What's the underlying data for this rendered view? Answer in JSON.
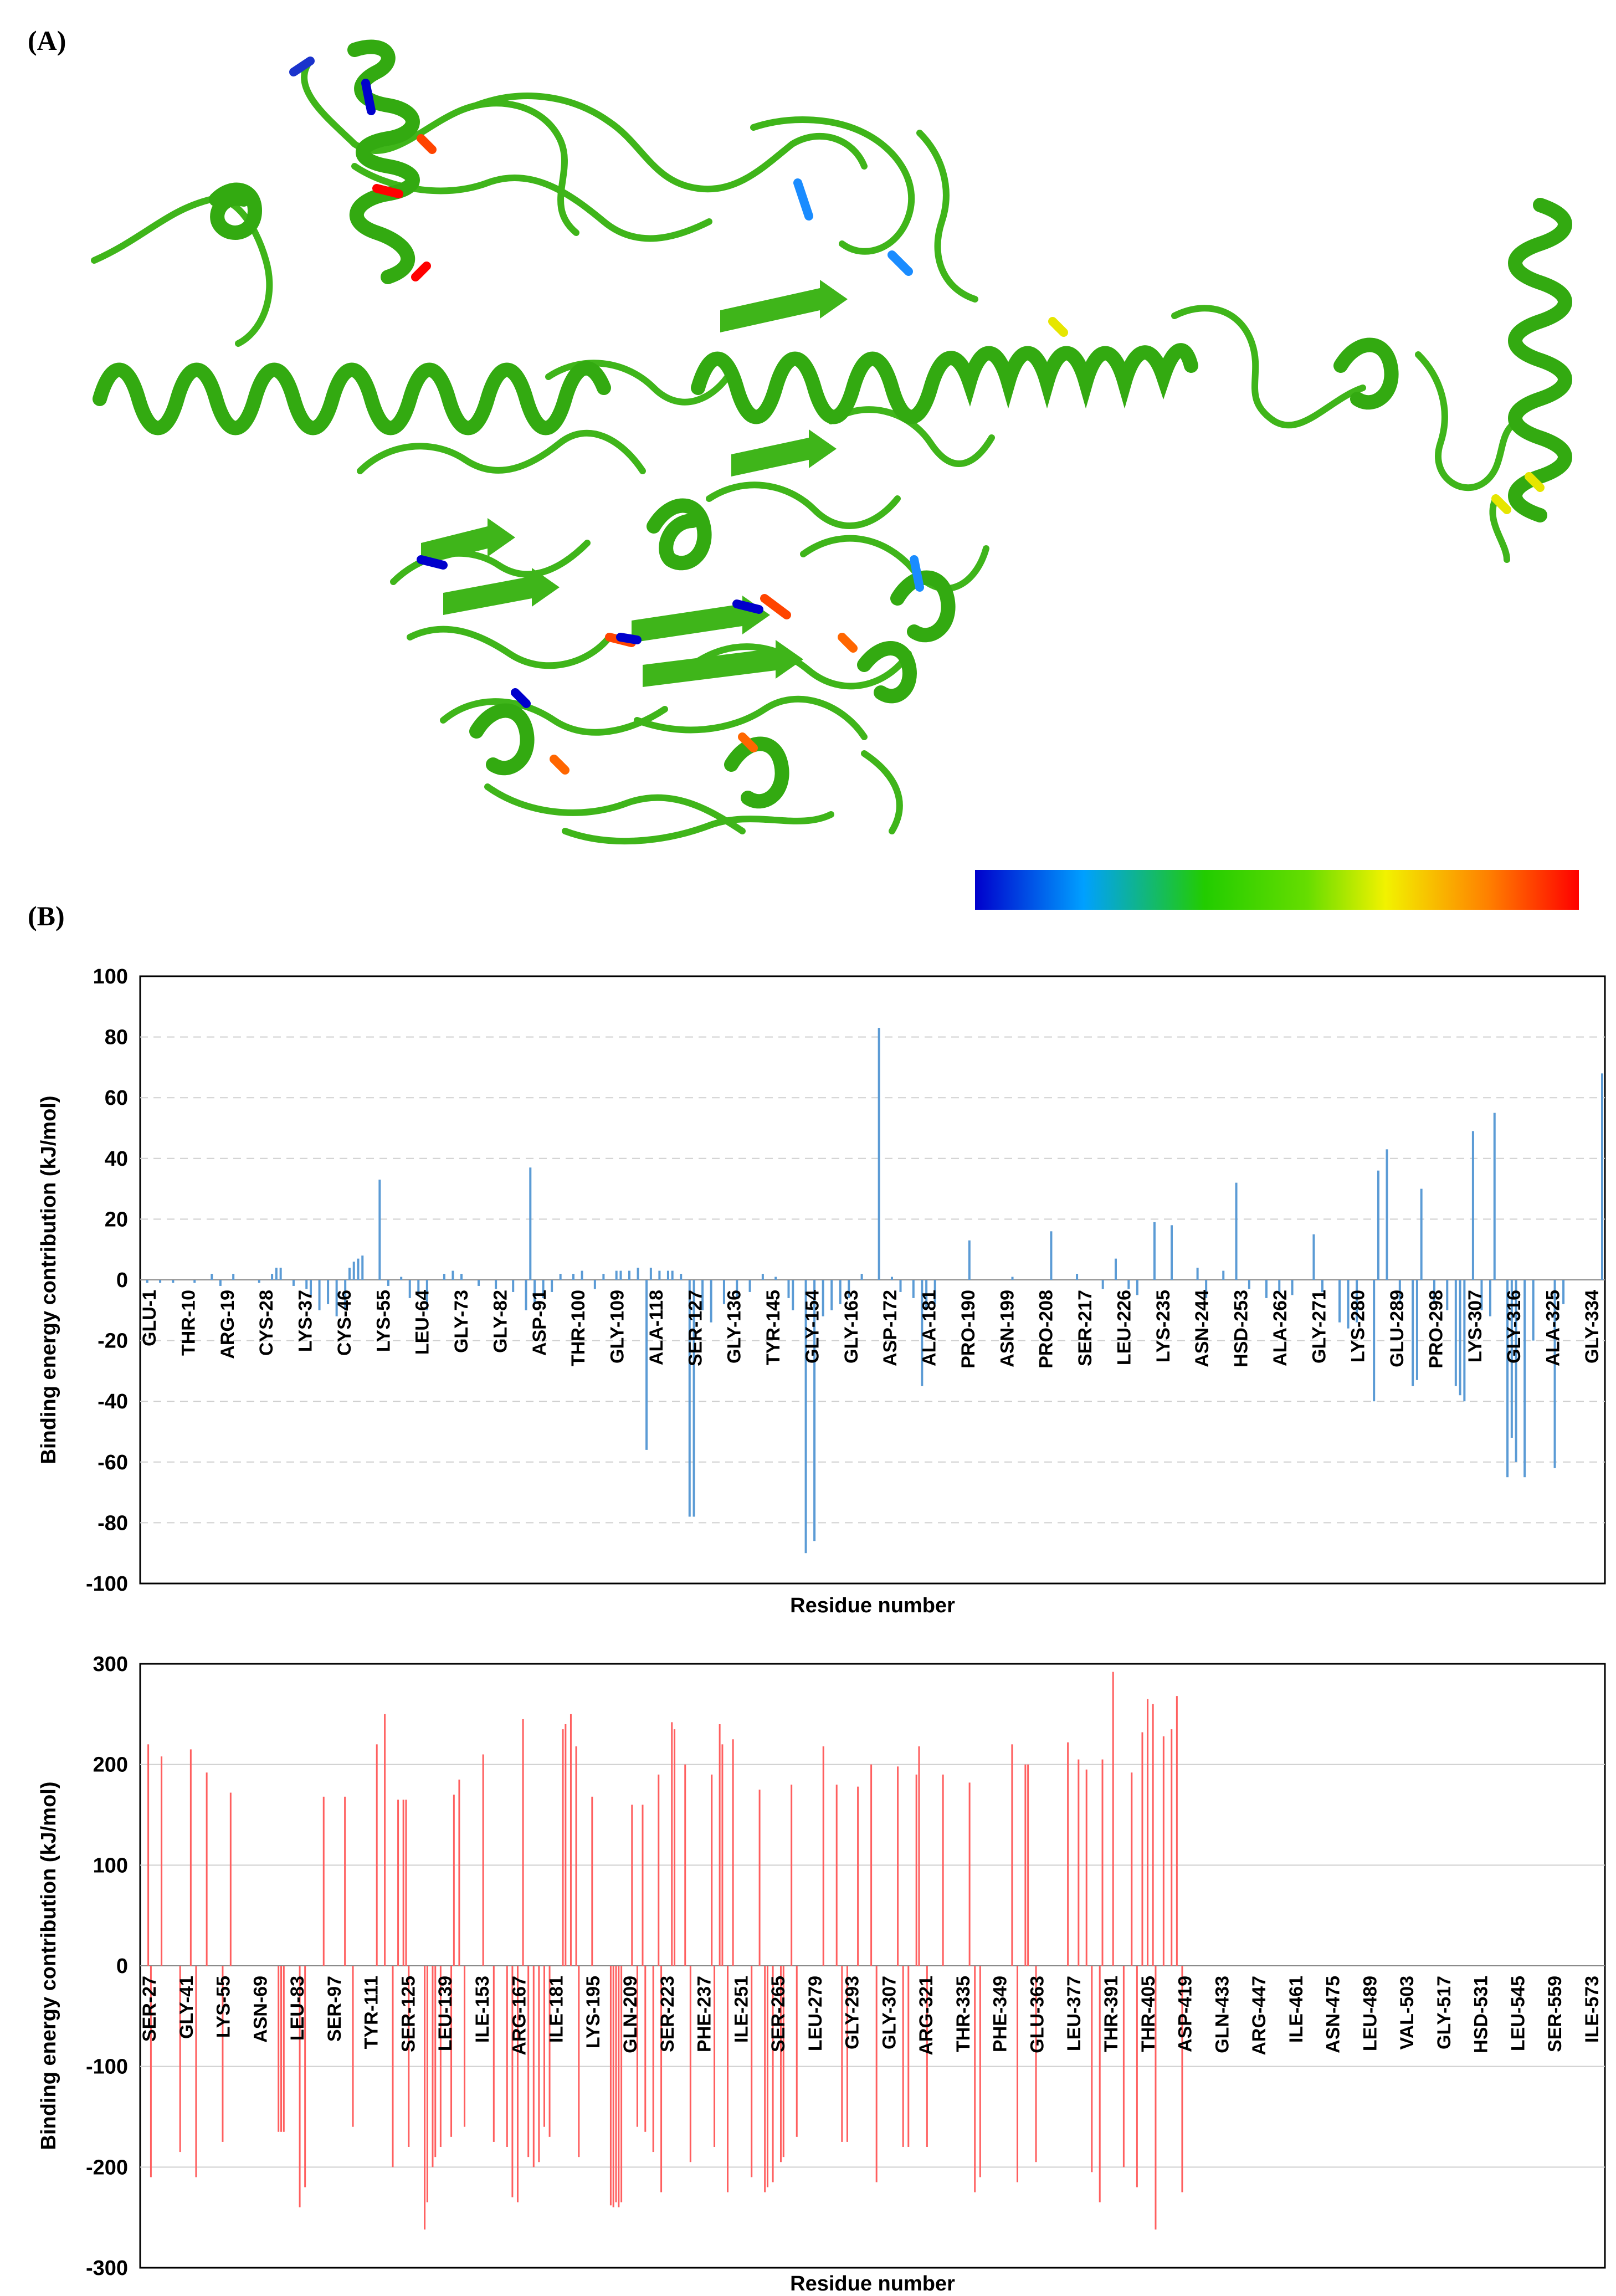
{
  "figure": {
    "panel_a_label": "(A)",
    "panel_b_label": "(B)",
    "panel_a_image": "protein-cartoon-ribbon-structure",
    "colorbar_colors": [
      "#0000cc",
      "#00a0ff",
      "#22cc00",
      "#f2f200",
      "#ff8000",
      "#ff0000"
    ]
  },
  "chart_data": [
    {
      "type": "bar",
      "title": "",
      "xlabel": "Residue number",
      "ylabel": "Binding energy contribution (kJ/mol)",
      "ylim": [
        -100,
        100
      ],
      "yticks": [
        100,
        80,
        60,
        40,
        20,
        0,
        -20,
        -40,
        -60,
        -80,
        -100
      ],
      "grid": true,
      "color": "#5b9bd5",
      "residue_range": [
        1,
        340
      ],
      "tick_labels": [
        "GLU-1",
        "THR-10",
        "ARG-19",
        "CYS-28",
        "LYS-37",
        "CYS-46",
        "LYS-55",
        "LEU-64",
        "GLY-73",
        "GLY-82",
        "ASP-91",
        "THR-100",
        "GLY-109",
        "ALA-118",
        "SER-127",
        "GLY-136",
        "TYR-145",
        "GLY-154",
        "GLY-163",
        "ASP-172",
        "ALA-181",
        "PRO-190",
        "ASN-199",
        "PRO-208",
        "SER-217",
        "LEU-226",
        "LYS-235",
        "ASN-244",
        "HSD-253",
        "ALA-262",
        "GLY-271",
        "LYS-280",
        "GLU-289",
        "PRO-298",
        "LYS-307",
        "GLY-316",
        "ALA-325",
        "GLY-334"
      ],
      "bars": [
        {
          "residue": 2,
          "value": -1
        },
        {
          "residue": 5,
          "value": -1
        },
        {
          "residue": 8,
          "value": -1
        },
        {
          "residue": 13,
          "value": -1
        },
        {
          "residue": 17,
          "value": 2
        },
        {
          "residue": 19,
          "value": -2
        },
        {
          "residue": 22,
          "value": 2
        },
        {
          "residue": 28,
          "value": -1
        },
        {
          "residue": 31,
          "value": 2
        },
        {
          "residue": 32,
          "value": 4
        },
        {
          "residue": 33,
          "value": 4
        },
        {
          "residue": 36,
          "value": -2
        },
        {
          "residue": 39,
          "value": -3
        },
        {
          "residue": 40,
          "value": -5
        },
        {
          "residue": 42,
          "value": -10
        },
        {
          "residue": 44,
          "value": -8
        },
        {
          "residue": 46,
          "value": -12
        },
        {
          "residue": 48,
          "value": -10
        },
        {
          "residue": 49,
          "value": 4
        },
        {
          "residue": 50,
          "value": 6
        },
        {
          "residue": 51,
          "value": 7
        },
        {
          "residue": 52,
          "value": 8
        },
        {
          "residue": 56,
          "value": 33
        },
        {
          "residue": 58,
          "value": -2
        },
        {
          "residue": 61,
          "value": 1
        },
        {
          "residue": 63,
          "value": -6
        },
        {
          "residue": 65,
          "value": -5
        },
        {
          "residue": 67,
          "value": -10
        },
        {
          "residue": 71,
          "value": 2
        },
        {
          "residue": 73,
          "value": 3
        },
        {
          "residue": 75,
          "value": 2
        },
        {
          "residue": 79,
          "value": -2
        },
        {
          "residue": 83,
          "value": -3
        },
        {
          "residue": 87,
          "value": -4
        },
        {
          "residue": 90,
          "value": -10
        },
        {
          "residue": 91,
          "value": 37
        },
        {
          "residue": 92,
          "value": -8
        },
        {
          "residue": 94,
          "value": -6
        },
        {
          "residue": 96,
          "value": -4
        },
        {
          "residue": 98,
          "value": 2
        },
        {
          "residue": 101,
          "value": 2
        },
        {
          "residue": 103,
          "value": 3
        },
        {
          "residue": 106,
          "value": -3
        },
        {
          "residue": 108,
          "value": 2
        },
        {
          "residue": 111,
          "value": 3
        },
        {
          "residue": 112,
          "value": 3
        },
        {
          "residue": 114,
          "value": 3
        },
        {
          "residue": 116,
          "value": 4
        },
        {
          "residue": 118,
          "value": -56
        },
        {
          "residue": 119,
          "value": 4
        },
        {
          "residue": 121,
          "value": 3
        },
        {
          "residue": 123,
          "value": 3
        },
        {
          "residue": 124,
          "value": 3
        },
        {
          "residue": 126,
          "value": 2
        },
        {
          "residue": 128,
          "value": -78
        },
        {
          "residue": 129,
          "value": -78
        },
        {
          "residue": 131,
          "value": -10
        },
        {
          "residue": 133,
          "value": -14
        },
        {
          "residue": 136,
          "value": -8
        },
        {
          "residue": 139,
          "value": -6
        },
        {
          "residue": 142,
          "value": -4
        },
        {
          "residue": 145,
          "value": 2
        },
        {
          "residue": 148,
          "value": 1
        },
        {
          "residue": 151,
          "value": -6
        },
        {
          "residue": 152,
          "value": -10
        },
        {
          "residue": 155,
          "value": -90
        },
        {
          "residue": 157,
          "value": -86
        },
        {
          "residue": 159,
          "value": -12
        },
        {
          "residue": 161,
          "value": -10
        },
        {
          "residue": 163,
          "value": -8
        },
        {
          "residue": 165,
          "value": -6
        },
        {
          "residue": 168,
          "value": 2
        },
        {
          "residue": 172,
          "value": 83
        },
        {
          "residue": 175,
          "value": 1
        },
        {
          "residue": 177,
          "value": -4
        },
        {
          "residue": 180,
          "value": -6
        },
        {
          "residue": 182,
          "value": -35
        },
        {
          "residue": 183,
          "value": -10
        },
        {
          "residue": 185,
          "value": -8
        },
        {
          "residue": 193,
          "value": 13
        },
        {
          "residue": 203,
          "value": 1
        },
        {
          "residue": 212,
          "value": 16
        },
        {
          "residue": 218,
          "value": 2
        },
        {
          "residue": 224,
          "value": -3
        },
        {
          "residue": 227,
          "value": 7
        },
        {
          "residue": 230,
          "value": -3
        },
        {
          "residue": 232,
          "value": -5
        },
        {
          "residue": 236,
          "value": 19
        },
        {
          "residue": 240,
          "value": 18
        },
        {
          "residue": 246,
          "value": 4
        },
        {
          "residue": 248,
          "value": -6
        },
        {
          "residue": 252,
          "value": 3
        },
        {
          "residue": 255,
          "value": 32
        },
        {
          "residue": 258,
          "value": -3
        },
        {
          "residue": 262,
          "value": -6
        },
        {
          "residue": 265,
          "value": -4
        },
        {
          "residue": 268,
          "value": -5
        },
        {
          "residue": 273,
          "value": 15
        },
        {
          "residue": 275,
          "value": -4
        },
        {
          "residue": 279,
          "value": -14
        },
        {
          "residue": 281,
          "value": -16
        },
        {
          "residue": 283,
          "value": -14
        },
        {
          "residue": 287,
          "value": -40
        },
        {
          "residue": 288,
          "value": 36
        },
        {
          "residue": 290,
          "value": 43
        },
        {
          "residue": 293,
          "value": -8
        },
        {
          "residue": 296,
          "value": -35
        },
        {
          "residue": 297,
          "value": -33
        },
        {
          "residue": 298,
          "value": 30
        },
        {
          "residue": 301,
          "value": -8
        },
        {
          "residue": 304,
          "value": -10
        },
        {
          "residue": 306,
          "value": -35
        },
        {
          "residue": 307,
          "value": -38
        },
        {
          "residue": 308,
          "value": -40
        },
        {
          "residue": 310,
          "value": 49
        },
        {
          "residue": 312,
          "value": -10
        },
        {
          "residue": 314,
          "value": -12
        },
        {
          "residue": 315,
          "value": 55
        },
        {
          "residue": 318,
          "value": -65
        },
        {
          "residue": 319,
          "value": -52
        },
        {
          "residue": 320,
          "value": -60
        },
        {
          "residue": 322,
          "value": -65
        },
        {
          "residue": 324,
          "value": -20
        },
        {
          "residue": 329,
          "value": -62
        },
        {
          "residue": 331,
          "value": -8
        },
        {
          "residue": 340,
          "value": 68
        }
      ]
    },
    {
      "type": "bar",
      "title": "",
      "xlabel": "Residue number",
      "ylabel": "Binding energy contribution (kJ/mol)",
      "ylim": [
        -300,
        300
      ],
      "yticks": [
        300,
        200,
        100,
        0,
        -100,
        -200,
        -300
      ],
      "grid": true,
      "color": "#ff5f5f",
      "residue_range": [
        27,
        576
      ],
      "tick_labels": [
        "SER-27",
        "GLY-41",
        "LYS-55",
        "ASN-69",
        "LEU-83",
        "SER-97",
        "TYR-111",
        "SER-125",
        "LEU-139",
        "ILE-153",
        "ARG-167",
        "ILE-181",
        "LYS-195",
        "GLN-209",
        "SER-223",
        "PHE-237",
        "ILE-251",
        "SER-265",
        "LEU-279",
        "GLY-293",
        "GLY-307",
        "ARG-321",
        "THR-335",
        "PHE-349",
        "GLU-363",
        "LEU-377",
        "THR-391",
        "THR-405",
        "ASP-419",
        "GLN-433",
        "ARG-447",
        "ILE-461",
        "ASN-475",
        "LEU-489",
        "VAL-503",
        "GLY-517",
        "HSD-531",
        "LEU-545",
        "SER-559",
        "ILE-573"
      ],
      "bars": [
        {
          "residue": 29,
          "value": 220
        },
        {
          "residue": 30,
          "value": -210
        },
        {
          "residue": 34,
          "value": 208
        },
        {
          "residue": 41,
          "value": -185
        },
        {
          "residue": 45,
          "value": 215
        },
        {
          "residue": 47,
          "value": -210
        },
        {
          "residue": 51,
          "value": 192
        },
        {
          "residue": 57,
          "value": -175
        },
        {
          "residue": 60,
          "value": 172
        },
        {
          "residue": 78,
          "value": -165
        },
        {
          "residue": 79,
          "value": -165
        },
        {
          "residue": 80,
          "value": -165
        },
        {
          "residue": 86,
          "value": -240
        },
        {
          "residue": 88,
          "value": -220
        },
        {
          "residue": 95,
          "value": 168
        },
        {
          "residue": 103,
          "value": 168
        },
        {
          "residue": 106,
          "value": -160
        },
        {
          "residue": 115,
          "value": 220
        },
        {
          "residue": 118,
          "value": 250
        },
        {
          "residue": 121,
          "value": -200
        },
        {
          "residue": 123,
          "value": 165
        },
        {
          "residue": 125,
          "value": 165
        },
        {
          "residue": 126,
          "value": 165
        },
        {
          "residue": 127,
          "value": -180
        },
        {
          "residue": 133,
          "value": -262
        },
        {
          "residue": 134,
          "value": -235
        },
        {
          "residue": 136,
          "value": -200
        },
        {
          "residue": 137,
          "value": -190
        },
        {
          "residue": 139,
          "value": -180
        },
        {
          "residue": 143,
          "value": -170
        },
        {
          "residue": 144,
          "value": 170
        },
        {
          "residue": 146,
          "value": 185
        },
        {
          "residue": 148,
          "value": -160
        },
        {
          "residue": 155,
          "value": 210
        },
        {
          "residue": 159,
          "value": -175
        },
        {
          "residue": 164,
          "value": -180
        },
        {
          "residue": 166,
          "value": -230
        },
        {
          "residue": 168,
          "value": -235
        },
        {
          "residue": 170,
          "value": 245
        },
        {
          "residue": 172,
          "value": -190
        },
        {
          "residue": 174,
          "value": -200
        },
        {
          "residue": 176,
          "value": -195
        },
        {
          "residue": 178,
          "value": -160
        },
        {
          "residue": 180,
          "value": -170
        },
        {
          "residue": 185,
          "value": 235
        },
        {
          "residue": 186,
          "value": 240
        },
        {
          "residue": 188,
          "value": 250
        },
        {
          "residue": 190,
          "value": 218
        },
        {
          "residue": 191,
          "value": -190
        },
        {
          "residue": 196,
          "value": 168
        },
        {
          "residue": 203,
          "value": -238
        },
        {
          "residue": 204,
          "value": -240
        },
        {
          "residue": 205,
          "value": -235
        },
        {
          "residue": 206,
          "value": -240
        },
        {
          "residue": 207,
          "value": -235
        },
        {
          "residue": 211,
          "value": 160
        },
        {
          "residue": 213,
          "value": -160
        },
        {
          "residue": 215,
          "value": 160
        },
        {
          "residue": 216,
          "value": -165
        },
        {
          "residue": 219,
          "value": -185
        },
        {
          "residue": 221,
          "value": 190
        },
        {
          "residue": 222,
          "value": -225
        },
        {
          "residue": 226,
          "value": 242
        },
        {
          "residue": 227,
          "value": 235
        },
        {
          "residue": 231,
          "value": 200
        },
        {
          "residue": 233,
          "value": -195
        },
        {
          "residue": 241,
          "value": 190
        },
        {
          "residue": 242,
          "value": -180
        },
        {
          "residue": 244,
          "value": 240
        },
        {
          "residue": 245,
          "value": 220
        },
        {
          "residue": 247,
          "value": -225
        },
        {
          "residue": 249,
          "value": 225
        },
        {
          "residue": 256,
          "value": -210
        },
        {
          "residue": 259,
          "value": 175
        },
        {
          "residue": 261,
          "value": -225
        },
        {
          "residue": 262,
          "value": -220
        },
        {
          "residue": 264,
          "value": -215
        },
        {
          "residue": 267,
          "value": -195
        },
        {
          "residue": 268,
          "value": -190
        },
        {
          "residue": 271,
          "value": 180
        },
        {
          "residue": 273,
          "value": -170
        },
        {
          "residue": 283,
          "value": 218
        },
        {
          "residue": 288,
          "value": 180
        },
        {
          "residue": 290,
          "value": -175
        },
        {
          "residue": 292,
          "value": -175
        },
        {
          "residue": 296,
          "value": 178
        },
        {
          "residue": 301,
          "value": 200
        },
        {
          "residue": 303,
          "value": -215
        },
        {
          "residue": 311,
          "value": 198
        },
        {
          "residue": 313,
          "value": -180
        },
        {
          "residue": 315,
          "value": -180
        },
        {
          "residue": 318,
          "value": 190
        },
        {
          "residue": 319,
          "value": 218
        },
        {
          "residue": 322,
          "value": -180
        },
        {
          "residue": 328,
          "value": 190
        },
        {
          "residue": 338,
          "value": 182
        },
        {
          "residue": 340,
          "value": -225
        },
        {
          "residue": 342,
          "value": -210
        },
        {
          "residue": 354,
          "value": 220
        },
        {
          "residue": 356,
          "value": -215
        },
        {
          "residue": 359,
          "value": 200
        },
        {
          "residue": 360,
          "value": 200
        },
        {
          "residue": 363,
          "value": -195
        },
        {
          "residue": 375,
          "value": 222
        },
        {
          "residue": 379,
          "value": 205
        },
        {
          "residue": 382,
          "value": 195
        },
        {
          "residue": 384,
          "value": -205
        },
        {
          "residue": 387,
          "value": -235
        },
        {
          "residue": 388,
          "value": 205
        },
        {
          "residue": 392,
          "value": 292
        },
        {
          "residue": 396,
          "value": -200
        },
        {
          "residue": 399,
          "value": 192
        },
        {
          "residue": 401,
          "value": -220
        },
        {
          "residue": 403,
          "value": 232
        },
        {
          "residue": 405,
          "value": 265
        },
        {
          "residue": 407,
          "value": 260
        },
        {
          "residue": 408,
          "value": -262
        },
        {
          "residue": 411,
          "value": 228
        },
        {
          "residue": 414,
          "value": 235
        },
        {
          "residue": 416,
          "value": 268
        },
        {
          "residue": 418,
          "value": -225
        }
      ]
    }
  ]
}
